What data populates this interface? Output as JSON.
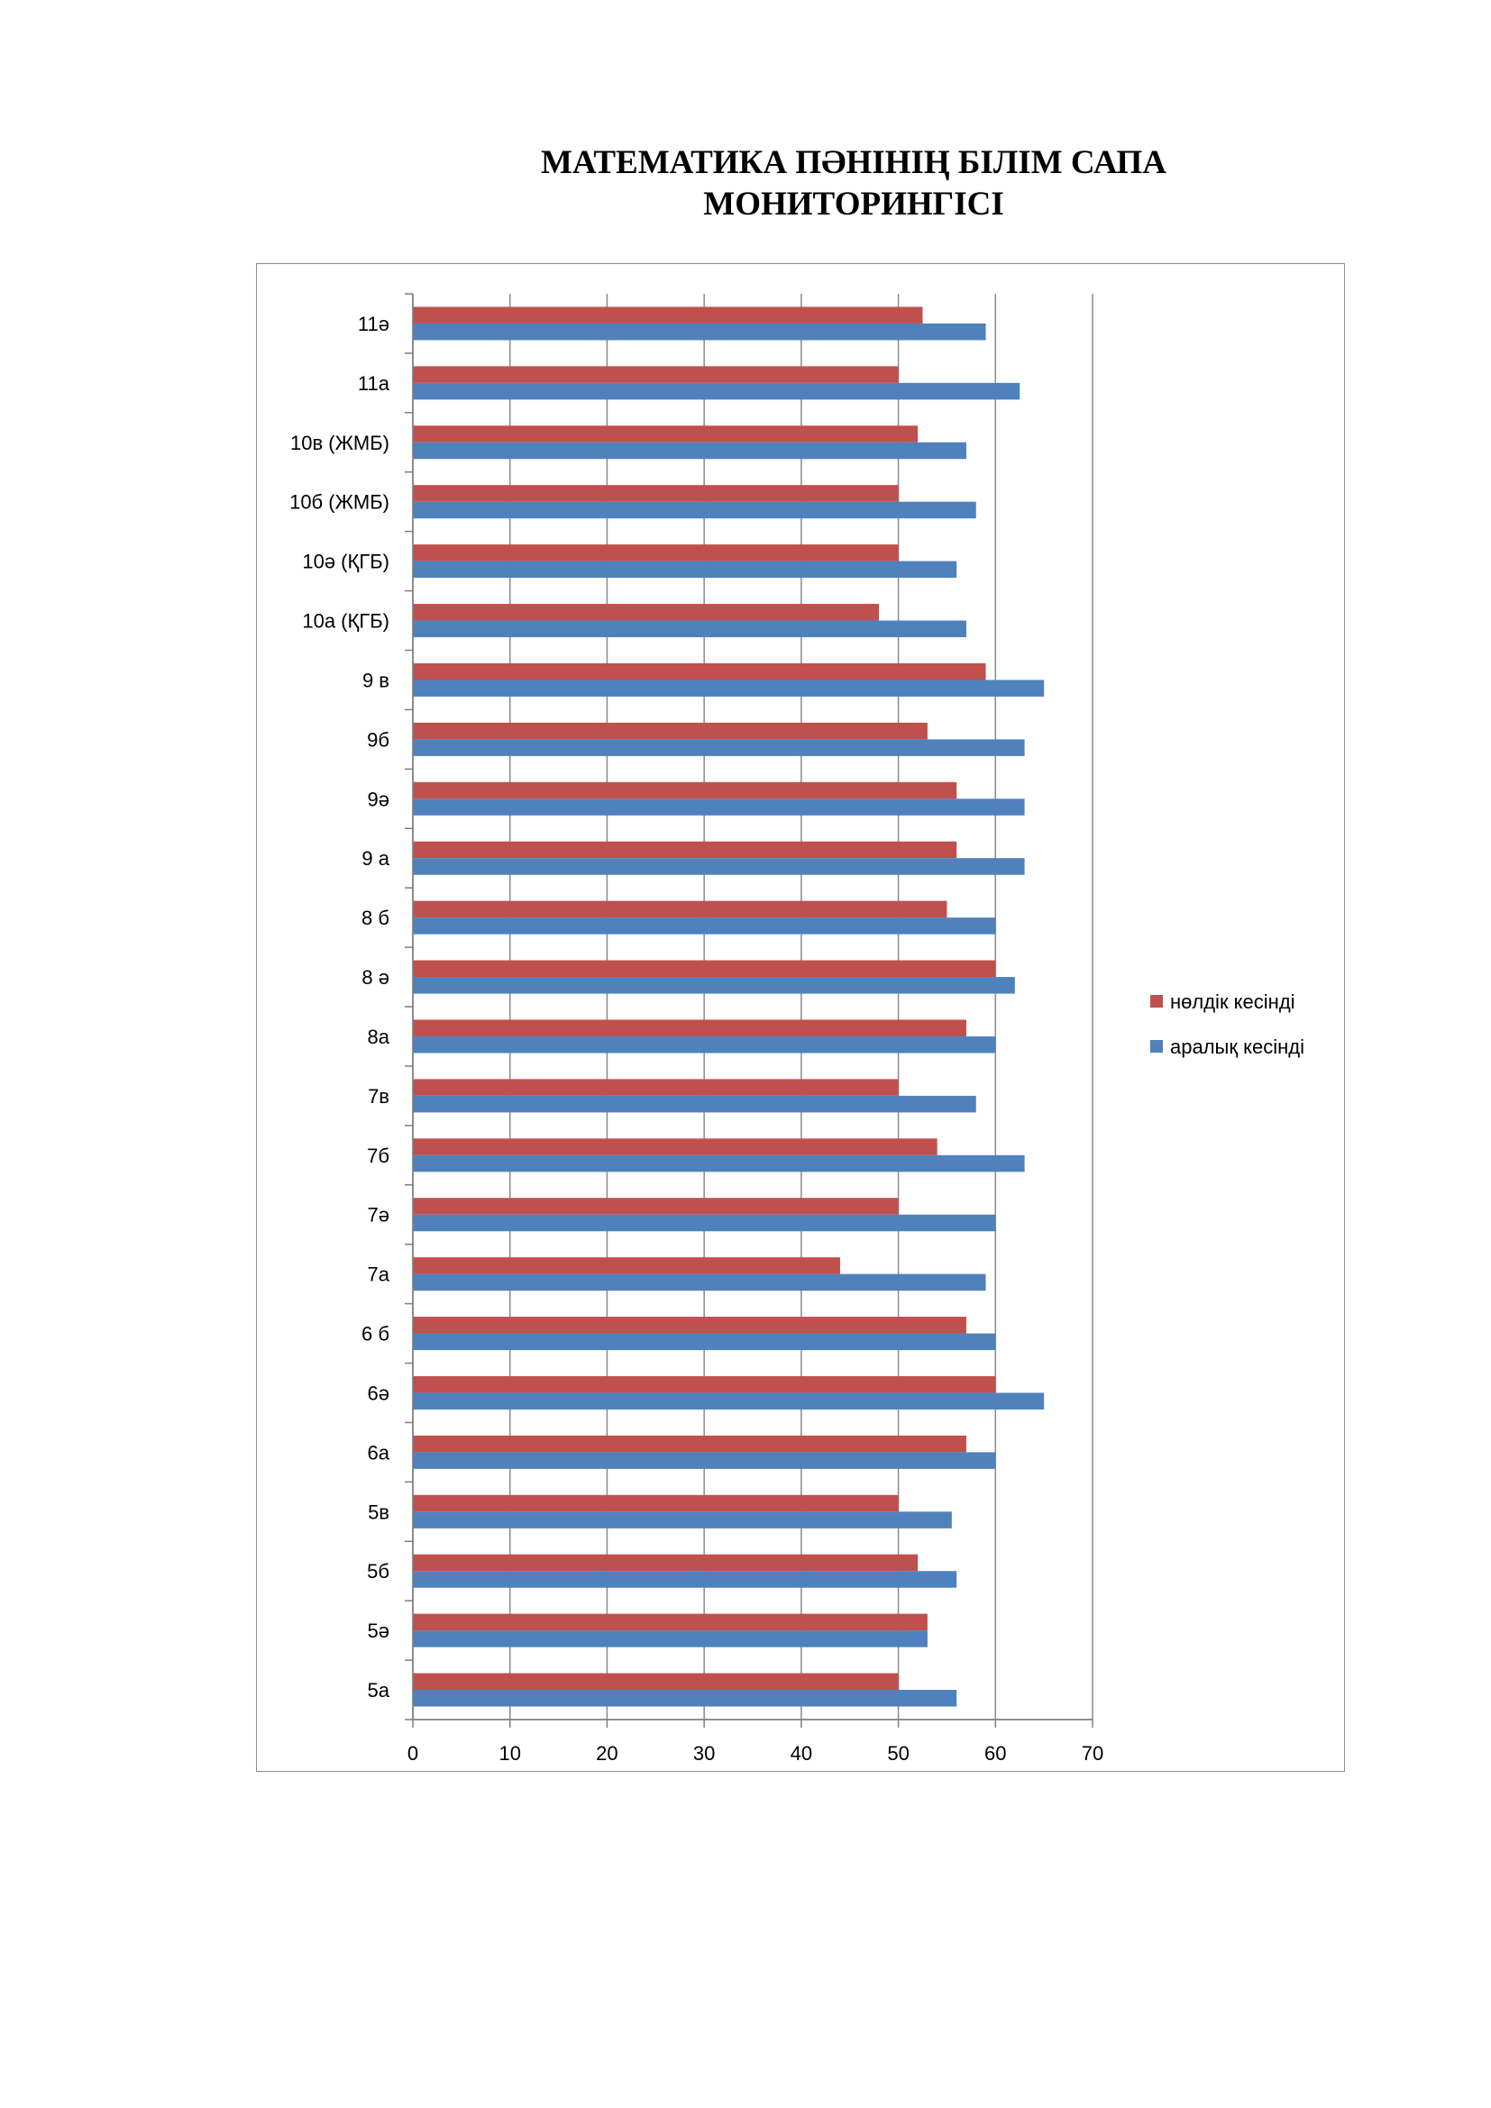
{
  "chart_data": {
    "type": "bar",
    "orientation": "horizontal",
    "title": "МАТЕМАТИКА ПӘНІНІҢ БІЛІМ САПА МОНИТОРИНГІСІ",
    "title_lines": [
      "МАТЕМАТИКА ПӘНІНІҢ БІЛІМ САПА",
      "МОНИТОРИНГІСІ"
    ],
    "categories": [
      "11ә",
      "11а",
      "10в (ЖМБ)",
      "10б (ЖМБ)",
      "10ә (ҚГБ)",
      "10а (ҚГБ)",
      "9 в",
      "9б",
      "9ә",
      "9 а",
      "8 б",
      "8 ә",
      "8а",
      "7в",
      "7б",
      "7ә",
      "7а",
      "6 б",
      "6ә",
      "6а",
      "5в",
      "5б",
      "5ә",
      "5а"
    ],
    "series": [
      {
        "name": "нөлдік кесінді",
        "color": "#c0504d",
        "values": [
          52.5,
          50,
          52,
          50,
          50,
          48,
          59,
          53,
          56,
          56,
          55,
          60,
          57,
          50,
          54,
          50,
          44,
          57,
          60,
          57,
          50,
          52,
          53,
          50
        ]
      },
      {
        "name": "аралық кесінді",
        "color": "#4f81bd",
        "values": [
          59,
          62.5,
          57,
          58,
          56,
          57,
          65,
          63,
          63,
          63,
          60,
          62,
          60,
          58,
          63,
          60,
          59,
          60,
          65,
          60,
          55.5,
          56,
          53,
          56
        ]
      }
    ],
    "xlim": [
      0,
      70
    ],
    "xticks": [
      "0",
      "10",
      "20",
      "30",
      "40",
      "50",
      "60",
      "70"
    ],
    "grid": true,
    "legend_position": "right"
  }
}
